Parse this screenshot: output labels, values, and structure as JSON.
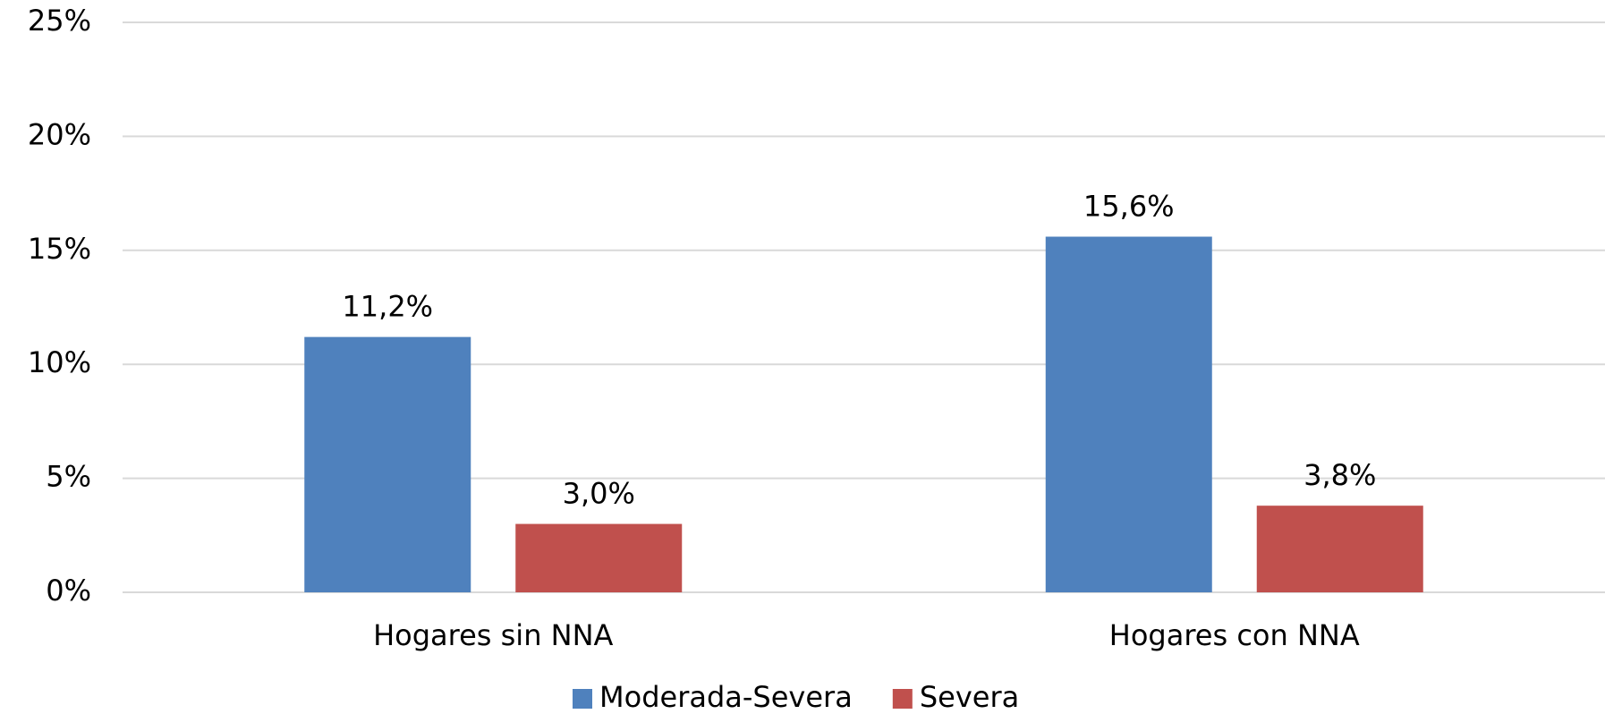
{
  "chart_data": {
    "type": "bar",
    "categories": [
      "Hogares sin NNA",
      "Hogares con NNA"
    ],
    "series": [
      {
        "name": "Moderada-Severa",
        "color": "#4f81bd",
        "values": [
          11.2,
          15.6
        ],
        "value_labels": [
          "11,2%",
          "15,6%"
        ]
      },
      {
        "name": "Severa",
        "color": "#c0504d",
        "values": [
          3.0,
          3.8
        ],
        "value_labels": [
          "3,0%",
          "3,8%"
        ]
      }
    ],
    "ylim": [
      0,
      25
    ],
    "yticks": [
      {
        "value": 0,
        "label": "0%"
      },
      {
        "value": 5,
        "label": "5%"
      },
      {
        "value": 10,
        "label": "10%"
      },
      {
        "value": 15,
        "label": "15%"
      },
      {
        "value": 20,
        "label": "20%"
      },
      {
        "value": 25,
        "label": "25%"
      }
    ],
    "grid": true,
    "legend": "bottom"
  }
}
